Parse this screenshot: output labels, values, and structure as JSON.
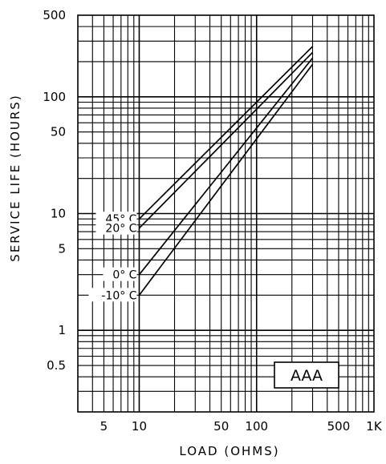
{
  "chart_data": {
    "type": "line",
    "title": "",
    "xlabel": "LOAD (OHMS)",
    "ylabel": "SERVICE LIFE (HOURS)",
    "x_scale": "log",
    "y_scale": "log",
    "xlim": [
      3,
      1000
    ],
    "ylim": [
      0.2,
      500
    ],
    "grid": true,
    "x_ticks": [
      {
        "value": 5,
        "label": "5"
      },
      {
        "value": 10,
        "label": "10"
      },
      {
        "value": 50,
        "label": "50"
      },
      {
        "value": 100,
        "label": "100"
      },
      {
        "value": 500,
        "label": "500"
      },
      {
        "value": 1000,
        "label": "1K"
      }
    ],
    "y_ticks": [
      {
        "value": 500,
        "label": "500"
      },
      {
        "value": 100,
        "label": "100"
      },
      {
        "value": 50,
        "label": "50"
      },
      {
        "value": 10,
        "label": "10"
      },
      {
        "value": 5,
        "label": "5"
      },
      {
        "value": 1,
        "label": "1"
      },
      {
        "value": 0.5,
        "label": "0.5"
      }
    ],
    "series": [
      {
        "name": "45° C",
        "x": [
          10,
          300
        ],
        "y": [
          9,
          270
        ]
      },
      {
        "name": "20° C",
        "x": [
          10,
          300
        ],
        "y": [
          7.5,
          240
        ]
      },
      {
        "name": "0° C",
        "x": [
          10,
          300
        ],
        "y": [
          3,
          215
        ]
      },
      {
        "name": "-10° C",
        "x": [
          10,
          300
        ],
        "y": [
          2,
          190
        ]
      }
    ],
    "annotations": [
      {
        "text": "AAA"
      }
    ]
  }
}
